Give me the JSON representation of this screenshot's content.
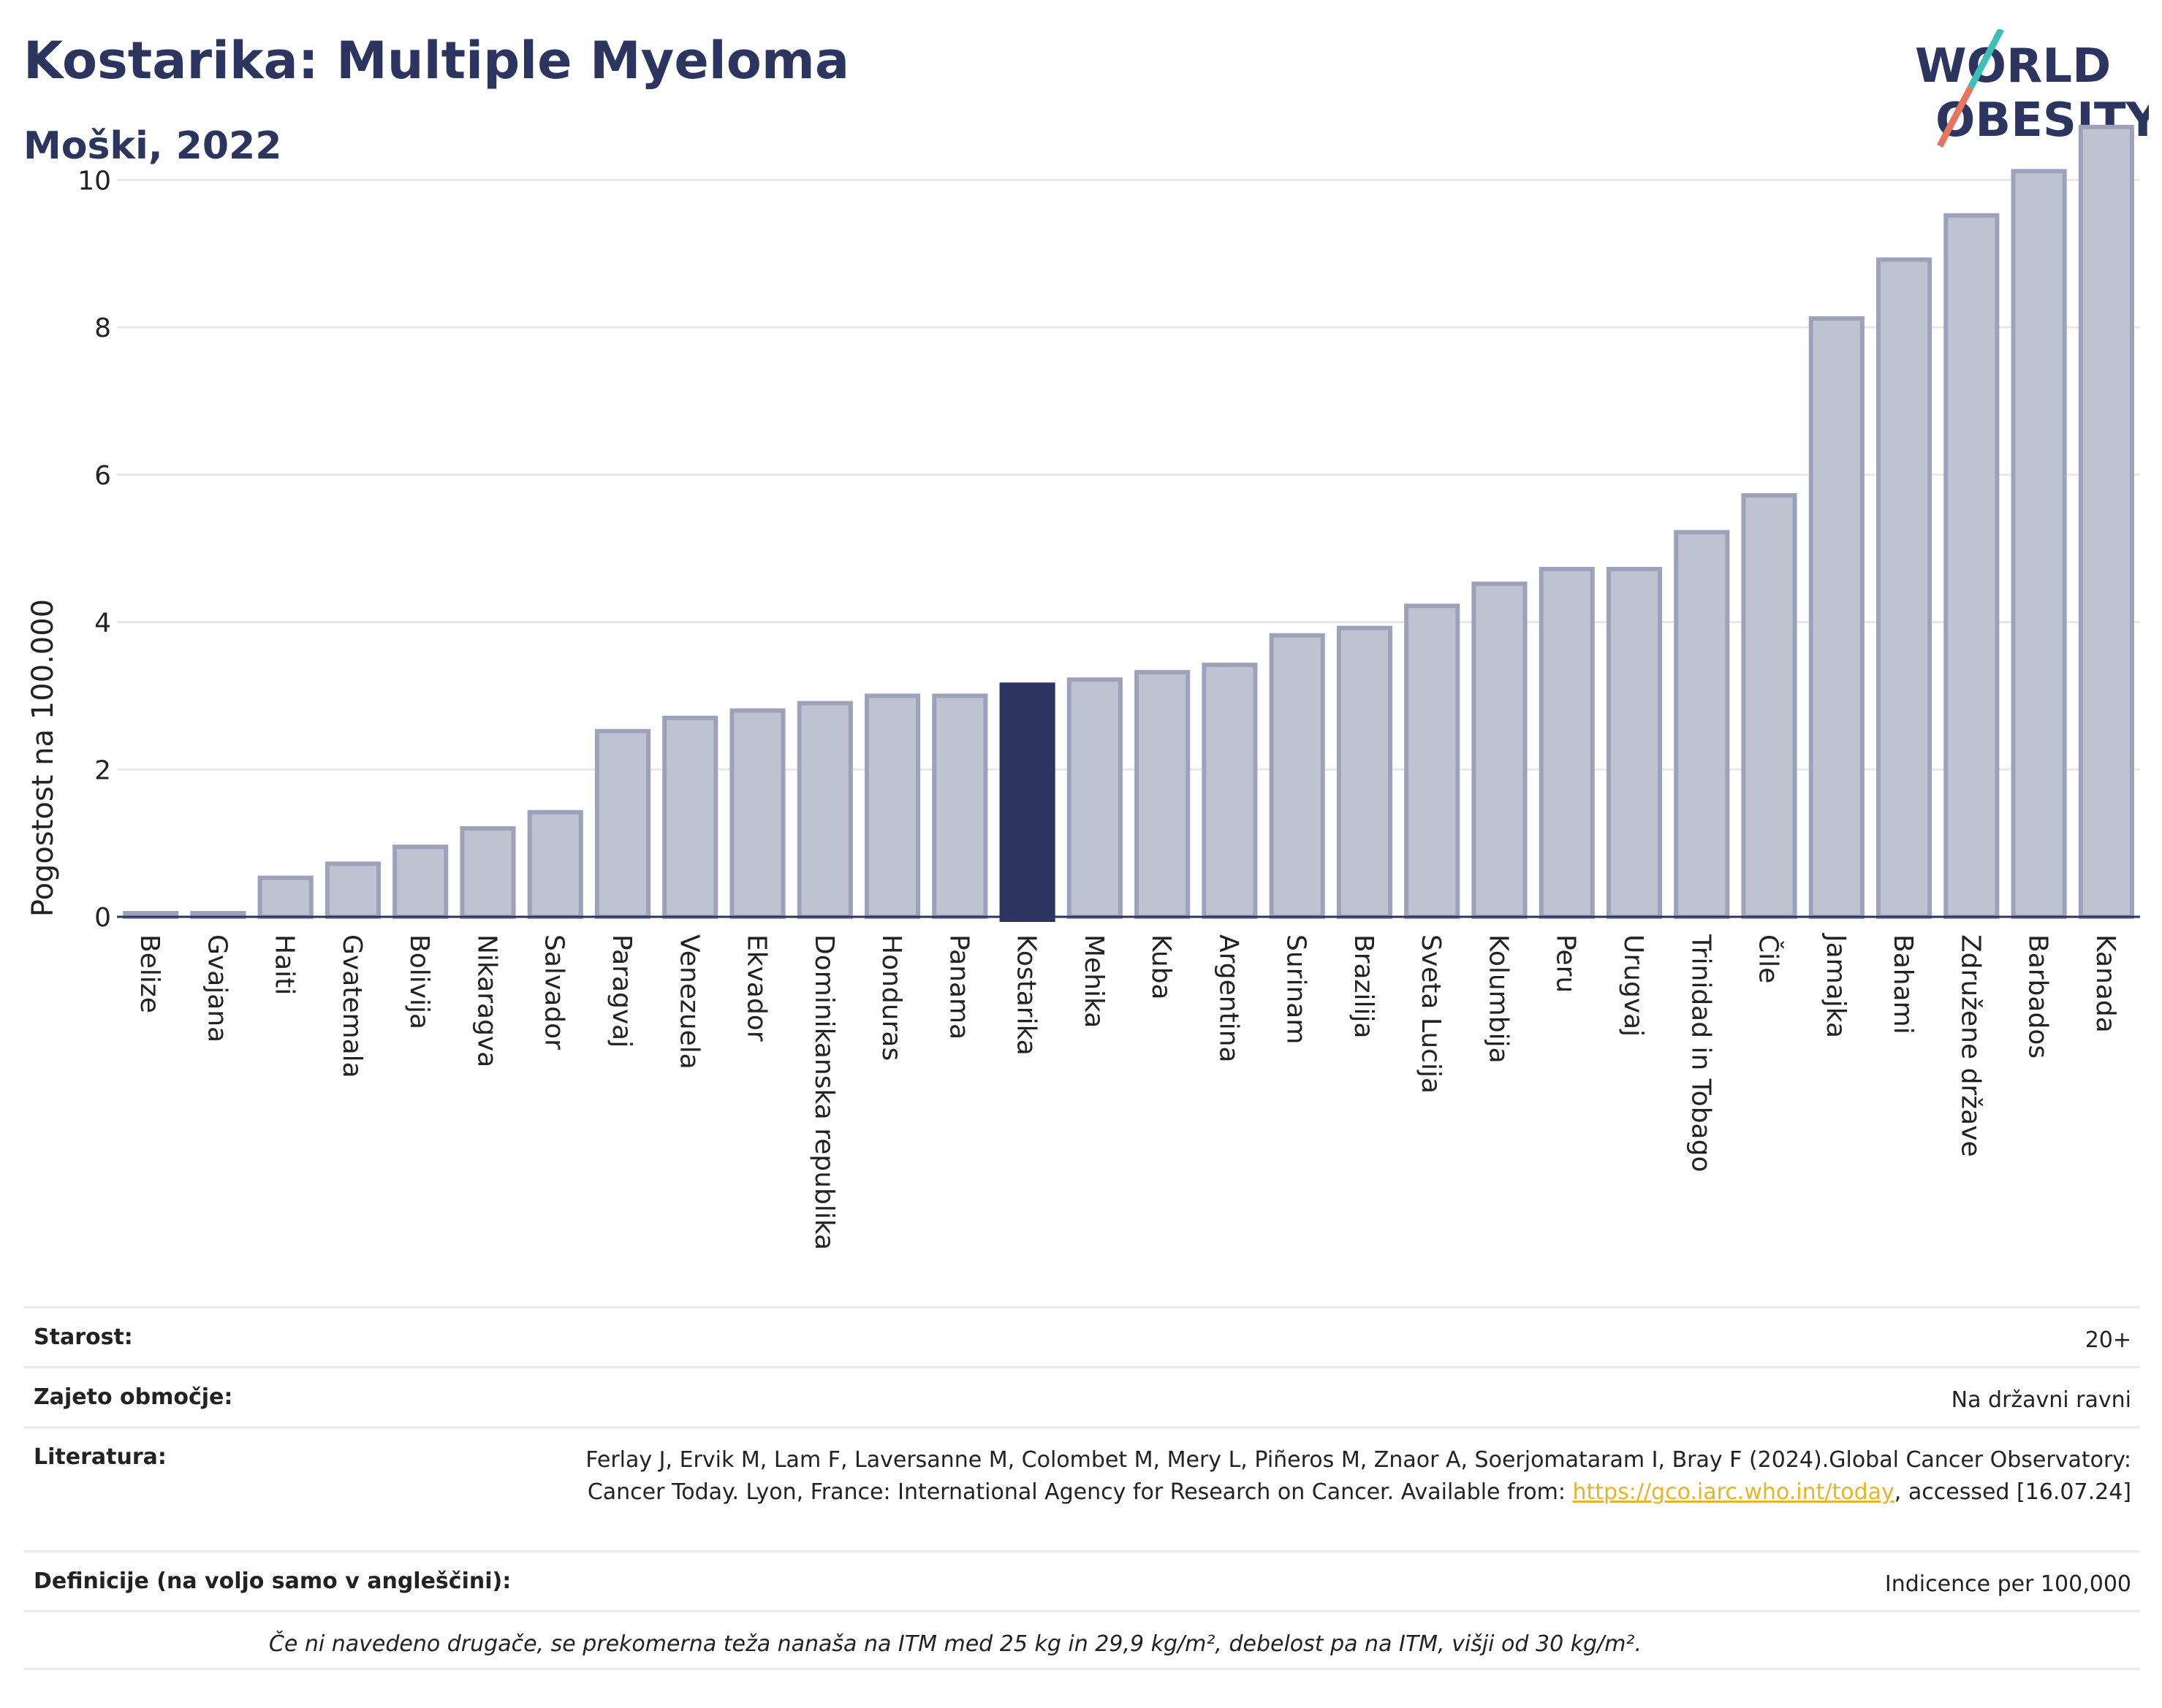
{
  "header": {
    "title": "Kostarika: Multiple Myeloma",
    "subtitle": "Moški, 2022"
  },
  "logo": {
    "line1": "WORLD",
    "line2": "OBESITY"
  },
  "chart_data": {
    "type": "bar",
    "ylabel": "Pogostost na 100.000",
    "ylim": [
      0,
      11
    ],
    "yticks": [
      0,
      2,
      4,
      6,
      8,
      10
    ],
    "grid": true,
    "highlight": "Kostarika",
    "colors": {
      "bar": "#bfc2d1",
      "bar_edge": "#9da2ba",
      "highlight": "#2b3560"
    },
    "categories": [
      "Belize",
      "Gvajana",
      "Haiti",
      "Gvatemala",
      "Bolivija",
      "Nikaragva",
      "Salvador",
      "Paragvaj",
      "Venezuela",
      "Ekvador",
      "Dominikanska republika",
      "Honduras",
      "Panama",
      "Kostarika",
      "Mehika",
      "Kuba",
      "Argentina",
      "Surinam",
      "Brazilija",
      "Sveta Lucija",
      "Kolumbija",
      "Peru",
      "Urugvaj",
      "Trinidad in Tobago",
      "Čile",
      "Jamajka",
      "Bahami",
      "Združene države",
      "Barbados",
      "Kanada"
    ],
    "values": [
      0.05,
      0.05,
      0.53,
      0.72,
      0.95,
      1.2,
      1.42,
      2.52,
      2.7,
      2.8,
      2.9,
      3.0,
      3.0,
      3.15,
      3.22,
      3.32,
      3.42,
      3.82,
      3.92,
      4.22,
      4.52,
      4.72,
      4.72,
      5.22,
      5.72,
      8.12,
      8.92,
      9.52,
      10.12,
      10.72
    ]
  },
  "meta": {
    "age_label": "Starost:",
    "age_value": "20+",
    "area_label": "Zajeto območje:",
    "area_value": "Na državni ravni",
    "lit_label": "Literatura:",
    "lit_text1": "Ferlay J, Ervik M, Lam F, Laversanne M, Colombet M, Mery L, Piñeros M, Znaor A, Soerjomataram I, Bray F (2024).Global Cancer Observatory: Cancer Today. Lyon, France: International Agency for Research on Cancer. Available from: ",
    "lit_link": "https://gco.iarc.who.int/today",
    "lit_text2": ", accessed [16.07.24]",
    "def_label": "Definicije (na voljo samo v angleščini):",
    "def_value": "Indicence per 100,000",
    "note": "Če ni navedeno drugače, se prekomerna teža nanaša na ITM med 25 kg in 29,9 kg/m², debelost pa na ITM, višji od 30 kg/m²."
  }
}
